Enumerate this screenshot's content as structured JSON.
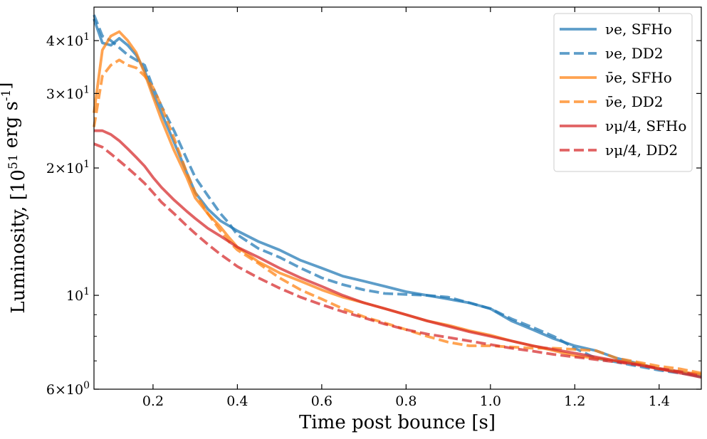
{
  "chart_data": {
    "type": "line",
    "xlabel": "Time post bounce [s]",
    "ylabel": "Luminosity, [10^51 erg s^-1]",
    "xlim": [
      0.06,
      1.5
    ],
    "ylim": [
      6,
      48
    ],
    "yscale": "log",
    "x_ticks": [
      0.2,
      0.4,
      0.6,
      0.8,
      1.0,
      1.2,
      1.4
    ],
    "x_tick_labels": [
      "0.2",
      "0.4",
      "0.6",
      "0.8",
      "1.0",
      "1.2",
      "1.4"
    ],
    "y_ticks": [
      {
        "value": 6,
        "label": "6×10^0"
      },
      {
        "value": 10,
        "label": "10^1"
      },
      {
        "value": 20,
        "label": "2×10^1"
      },
      {
        "value": 30,
        "label": "3×10^1"
      },
      {
        "value": 40,
        "label": "4×10^1"
      }
    ],
    "legend_position": "top-right",
    "series": [
      {
        "name": "νe, SFHo",
        "color": "#1f77b4",
        "dash": "solid",
        "x": [
          0.06,
          0.08,
          0.1,
          0.12,
          0.14,
          0.16,
          0.18,
          0.2,
          0.22,
          0.25,
          0.28,
          0.3,
          0.33,
          0.36,
          0.38,
          0.4,
          0.45,
          0.5,
          0.55,
          0.6,
          0.65,
          0.7,
          0.75,
          0.8,
          0.85,
          0.9,
          0.95,
          1.0,
          1.05,
          1.1,
          1.15,
          1.2,
          1.25,
          1.3,
          1.35,
          1.4,
          1.45,
          1.5
        ],
        "y": [
          45,
          39.5,
          39,
          40.5,
          39,
          37,
          34,
          30,
          27,
          23,
          19.5,
          17.5,
          16,
          15,
          14.6,
          14.2,
          13.4,
          12.8,
          12.1,
          11.6,
          11.1,
          10.8,
          10.5,
          10.2,
          10.0,
          9.8,
          9.6,
          9.3,
          8.7,
          8.3,
          7.9,
          7.6,
          7.4,
          7.1,
          6.9,
          6.7,
          6.6,
          6.4
        ]
      },
      {
        "name": "νe, DD2",
        "color": "#1f77b4",
        "dash": "dashed",
        "x": [
          0.06,
          0.08,
          0.1,
          0.12,
          0.14,
          0.16,
          0.18,
          0.2,
          0.22,
          0.25,
          0.28,
          0.3,
          0.33,
          0.36,
          0.38,
          0.4,
          0.45,
          0.5,
          0.55,
          0.6,
          0.65,
          0.7,
          0.75,
          0.8,
          0.85,
          0.9,
          0.95,
          1.0,
          1.05,
          1.1,
          1.15,
          1.2,
          1.25,
          1.3,
          1.35,
          1.4,
          1.45,
          1.5
        ],
        "y": [
          46,
          41,
          40,
          38.5,
          37,
          36,
          35,
          31,
          28,
          24.5,
          21,
          19,
          17.2,
          15.6,
          14.8,
          13.9,
          12.9,
          12.3,
          11.6,
          11.0,
          10.6,
          10.3,
          10.1,
          10.05,
          10.0,
          9.9,
          9.6,
          9.3,
          8.8,
          8.4,
          8.0,
          7.5,
          7.1,
          6.95,
          6.8,
          6.65,
          6.55,
          6.45
        ]
      },
      {
        "name": "ν̄e, SFHo",
        "color": "#ff7f0e",
        "dash": "solid",
        "x": [
          0.06,
          0.08,
          0.1,
          0.12,
          0.14,
          0.16,
          0.18,
          0.2,
          0.22,
          0.25,
          0.28,
          0.3,
          0.33,
          0.36,
          0.38,
          0.4,
          0.45,
          0.5,
          0.55,
          0.6,
          0.65,
          0.7,
          0.75,
          0.8,
          0.85,
          0.9,
          0.95,
          1.0,
          1.05,
          1.1,
          1.15,
          1.2,
          1.25,
          1.3,
          1.35,
          1.4,
          1.45,
          1.5
        ],
        "y": [
          27,
          38,
          41,
          42,
          40,
          37.5,
          33.5,
          29.5,
          26,
          22,
          19,
          17,
          15.6,
          14.5,
          13.7,
          13.0,
          12.0,
          11.3,
          10.8,
          10.3,
          9.9,
          9.6,
          9.3,
          9.0,
          8.7,
          8.5,
          8.25,
          8.05,
          7.8,
          7.6,
          7.4,
          7.2,
          7.1,
          7.0,
          6.9,
          6.7,
          6.6,
          6.5
        ]
      },
      {
        "name": "ν̄e, DD2",
        "color": "#ff7f0e",
        "dash": "dashed",
        "x": [
          0.06,
          0.08,
          0.1,
          0.12,
          0.14,
          0.16,
          0.18,
          0.2,
          0.22,
          0.25,
          0.28,
          0.3,
          0.33,
          0.36,
          0.38,
          0.4,
          0.45,
          0.5,
          0.55,
          0.6,
          0.65,
          0.7,
          0.75,
          0.8,
          0.85,
          0.9,
          0.95,
          1.0,
          1.05,
          1.1,
          1.15,
          1.2,
          1.25,
          1.3,
          1.35,
          1.4,
          1.45,
          1.5
        ],
        "y": [
          25,
          33,
          35,
          36,
          35,
          34.5,
          33,
          31,
          28,
          23.5,
          19.5,
          17.5,
          15.6,
          14.2,
          13.4,
          12.8,
          11.9,
          11.0,
          10.3,
          9.8,
          9.3,
          8.9,
          8.6,
          8.3,
          8.0,
          7.75,
          7.6,
          7.6,
          7.55,
          7.5,
          7.5,
          7.45,
          7.4,
          7.1,
          6.95,
          6.8,
          6.7,
          6.55
        ]
      },
      {
        "name": "νμ/4, SFHo",
        "color": "#d62728",
        "dash": "solid",
        "x": [
          0.06,
          0.08,
          0.1,
          0.12,
          0.14,
          0.16,
          0.18,
          0.2,
          0.22,
          0.25,
          0.28,
          0.3,
          0.33,
          0.36,
          0.38,
          0.4,
          0.45,
          0.5,
          0.55,
          0.6,
          0.65,
          0.7,
          0.75,
          0.8,
          0.85,
          0.9,
          0.95,
          1.0,
          1.05,
          1.1,
          1.15,
          1.2,
          1.25,
          1.3,
          1.35,
          1.4,
          1.45,
          1.5
        ],
        "y": [
          24.5,
          24.5,
          24,
          23.2,
          22.2,
          21.2,
          20.2,
          19.0,
          18.0,
          16.8,
          15.8,
          15.2,
          14.4,
          13.8,
          13.4,
          13.0,
          12.3,
          11.6,
          11.0,
          10.5,
          10.0,
          9.6,
          9.3,
          9.0,
          8.7,
          8.45,
          8.2,
          8.0,
          7.8,
          7.6,
          7.45,
          7.3,
          7.15,
          7.0,
          6.85,
          6.7,
          6.55,
          6.4
        ]
      },
      {
        "name": "νμ/4, DD2",
        "color": "#d62728",
        "dash": "dashed",
        "x": [
          0.06,
          0.08,
          0.1,
          0.12,
          0.14,
          0.16,
          0.18,
          0.2,
          0.22,
          0.25,
          0.28,
          0.3,
          0.33,
          0.36,
          0.38,
          0.4,
          0.45,
          0.5,
          0.55,
          0.6,
          0.65,
          0.7,
          0.75,
          0.8,
          0.85,
          0.9,
          0.95,
          1.0,
          1.05,
          1.1,
          1.15,
          1.2,
          1.25,
          1.3,
          1.35,
          1.4,
          1.45,
          1.5
        ],
        "y": [
          22.8,
          22.4,
          21.6,
          20.8,
          20.0,
          19.2,
          18.4,
          17.5,
          16.6,
          15.6,
          14.6,
          14.0,
          13.2,
          12.5,
          12.1,
          11.7,
          11.0,
          10.4,
          9.9,
          9.5,
          9.15,
          8.85,
          8.55,
          8.3,
          8.1,
          7.95,
          7.8,
          7.65,
          7.5,
          7.38,
          7.25,
          7.15,
          7.05,
          6.95,
          6.85,
          6.72,
          6.6,
          6.45
        ]
      }
    ]
  }
}
